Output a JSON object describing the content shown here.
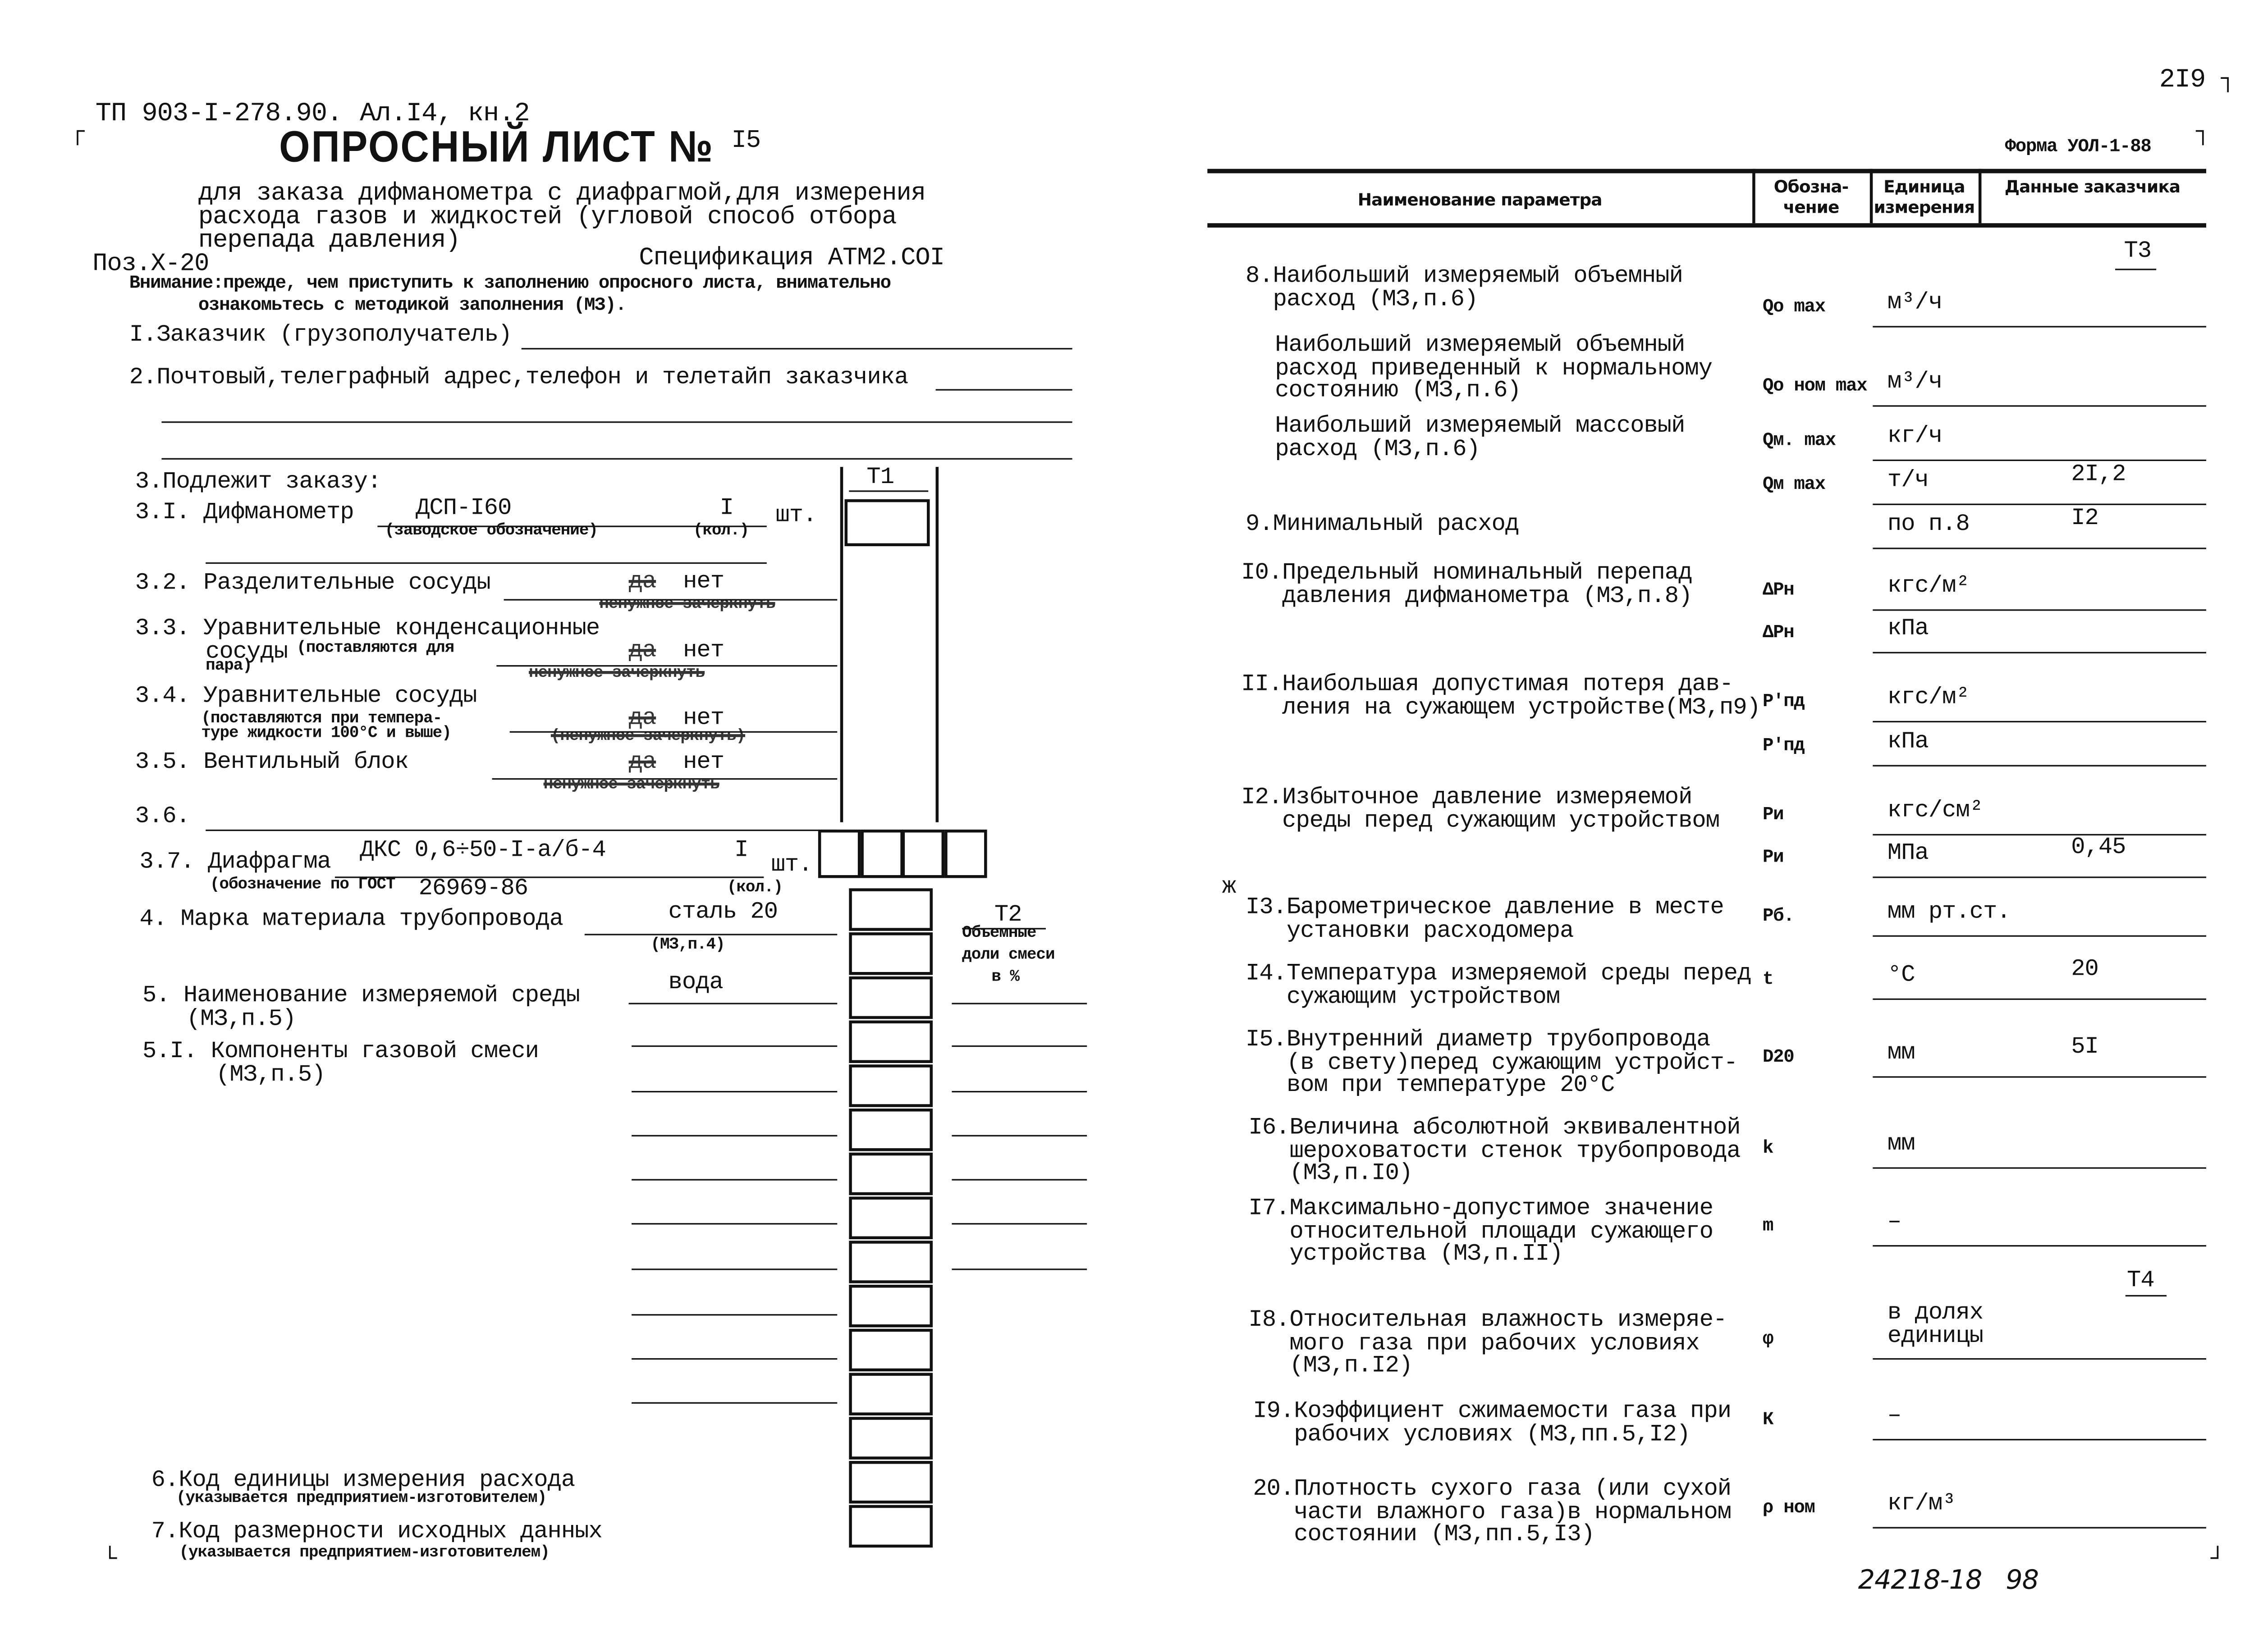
{
  "header": {
    "doc_code": "ТП 903-I-278.90.",
    "album": "Ал.I4, кн.2",
    "page_number": "2I9",
    "form": "Форма УОЛ-1-88",
    "handwritten_note": "24218-18   98"
  },
  "title": {
    "main": "ОПРОСНЫЙ ЛИСТ №",
    "number": "I5",
    "subtitle": [
      "для заказа дифманометра с диафрагмой,для измерения",
      "расхода газов и жидкостей (угловой способ отбора",
      "перепада давления)"
    ],
    "position": "Поз.Х-20",
    "specification": "Спецификация АТМ2.СОI",
    "warning": [
      "Внимание:прежде, чем приступить к заполнению опросного листа, внимательно",
      "ознакомьтесь с методикой заполнения (МЗ)."
    ]
  },
  "left": {
    "customer": "I.Заказчик (грузополучатель)",
    "address": "2.Почтовый,телеграфный адрес,телефон и телетайп заказчика",
    "order": "3.Подлежит заказу:",
    "t1": "Т1",
    "i31": {
      "label": "3.I. Дифманометр",
      "value": "ДСП-I60",
      "qty": "I",
      "unit": "шт.",
      "hint": "(заводское обозначение)",
      "qty_hint": "(кол.)"
    },
    "i32": {
      "label": "3.2. Разделительные сосуды",
      "crossed": "да",
      "value": "нет",
      "note": "ненужное зачеркнуть"
    },
    "i33": {
      "label": "3.3. Уравнительные конденсационные",
      "label2": "сосуды",
      "hint": "(поставляются для",
      "hint2": "пара)",
      "crossed": "да",
      "value": "нет",
      "note": "ненужное зачеркнуть"
    },
    "i34": {
      "label": "3.4. Уравнительные сосуды",
      "hint": "(поставляются при темпера-",
      "hint2": "туре жидкости 100°С и выше)",
      "crossed": "да",
      "value": "нет",
      "note": "(ненужное зачеркнуть)"
    },
    "i35": {
      "label": "3.5. Вентильный блок",
      "crossed": "да",
      "value": "нет",
      "note": "ненужное зачеркнуть"
    },
    "i36": {
      "label": "3.6."
    },
    "i37": {
      "label": "3.7. Диафрагма",
      "value": "ДКС 0,6÷50-I-а/б-4",
      "qty": "I",
      "unit": "шт.",
      "hint": "(обозначение по ГОСТ",
      "gost": "26969-86",
      "qty_hint": "(кол.)"
    },
    "i4": {
      "label": "4. Марка материала трубопровода",
      "value": "сталь 20",
      "ref": "(МЗ,п.4)"
    },
    "i5": {
      "label": "5. Наименование измеряемой среды",
      "label2": "(МЗ,п.5)",
      "value": "вода"
    },
    "i51": {
      "label": "5.I. Компоненты газовой смеси",
      "label2": "(МЗ,п.5)"
    },
    "t2": {
      "label": "Т2",
      "lines": [
        "Объемные",
        "доли смеси",
        "в %"
      ]
    },
    "i6": {
      "label": "6.Код единицы измерения расхода",
      "hint": "(указывается предприятием-изготовителем)"
    },
    "i7": {
      "label": "7.Код размерности исходных данных",
      "hint": "(указывается предприятием-изготовителем)"
    }
  },
  "table": {
    "columns": [
      "Наименование параметра",
      "Обозна-чение",
      "Единица измерения",
      "Данные заказчика"
    ],
    "t3": "Т3",
    "t4": "Т4",
    "mark": "ж",
    "rows": [
      {
        "lines": [
          "8.Наибольший измеряемый объемный",
          "  расход (МЗ,п.6)"
        ],
        "entries": [
          {
            "symbol": "Qо max",
            "unit": "м³/ч",
            "value": ""
          }
        ]
      },
      {
        "lines": [
          "Наибольший измеряемый объемный",
          "расход приведенный к нормальному",
          "состоянию (МЗ,п.6)"
        ],
        "entries": [
          {
            "symbol": "Qо ном max",
            "unit": "м³/ч",
            "value": ""
          }
        ]
      },
      {
        "lines": [
          "Наибольший измеряемый массовый",
          "расход (МЗ,п.6)"
        ],
        "entries": [
          {
            "symbol": "Qм. max",
            "unit": "кг/ч",
            "value": ""
          },
          {
            "symbol": "Qм max",
            "unit": "т/ч",
            "value": "2I,2"
          }
        ]
      },
      {
        "lines": [
          "9.Минимальный расход"
        ],
        "entries": [
          {
            "symbol": "",
            "unit": "по п.8",
            "value": "I2"
          }
        ]
      },
      {
        "lines": [
          "I0.Предельный номинальный перепад",
          "   давления дифманометра (МЗ,п.8)"
        ],
        "entries": [
          {
            "symbol": "ΔPн",
            "unit": "кгс/м²",
            "value": ""
          },
          {
            "symbol": "ΔPн",
            "unit": "кПа",
            "value": ""
          }
        ]
      },
      {
        "lines": [
          "II.Наибольшая допустимая потеря дав-",
          "   ления на сужающем устройстве(МЗ,п9)"
        ],
        "entries": [
          {
            "symbol": "P'пд",
            "unit": "кгс/м²",
            "value": ""
          },
          {
            "symbol": "P'пд",
            "unit": "кПа",
            "value": ""
          }
        ]
      },
      {
        "lines": [
          "I2.Избыточное давление измеряемой",
          "   среды перед сужающим устройством"
        ],
        "entries": [
          {
            "symbol": "Ри",
            "unit": "кгс/см²",
            "value": ""
          },
          {
            "symbol": "Ри",
            "unit": "МПа",
            "value": "0,45"
          }
        ]
      },
      {
        "lines": [
          "I3.Барометрическое давление в месте",
          "   установки расходомера"
        ],
        "entries": [
          {
            "symbol": "Рб.",
            "unit": "мм рт.ст.",
            "value": ""
          }
        ]
      },
      {
        "lines": [
          "I4.Температура измеряемой среды перед",
          "   сужающим устройством"
        ],
        "entries": [
          {
            "symbol": "t",
            "unit": "°С",
            "value": "20"
          }
        ]
      },
      {
        "lines": [
          "I5.Внутренний диаметр трубопровода",
          "   (в свету)перед сужающим устройст-",
          "   вом при температуре 20°С"
        ],
        "entries": [
          {
            "symbol": "D20",
            "unit": "мм",
            "value": "5I"
          }
        ]
      },
      {
        "lines": [
          "I6.Величина абсолютной эквивалентной",
          "   шероховатости стенок трубопровода",
          "   (МЗ,п.I0)"
        ],
        "entries": [
          {
            "symbol": "k",
            "unit": "мм",
            "value": ""
          }
        ]
      },
      {
        "lines": [
          "I7.Максимально-допустимое значение",
          "   относительной площади сужающего",
          "   устройства (МЗ,п.II)"
        ],
        "entries": [
          {
            "symbol": "m",
            "unit": "–",
            "value": ""
          }
        ]
      },
      {
        "lines": [
          "I8.Относительная влажность измеряе-",
          "   мого газа при рабочих условиях",
          "   (МЗ,п.I2)"
        ],
        "entries": [
          {
            "symbol": "φ",
            "unit": "в долях единицы",
            "value": ""
          }
        ]
      },
      {
        "lines": [
          "I9.Коэффициент сжимаемости газа при",
          "   рабочих условиях (МЗ,пп.5,I2)"
        ],
        "entries": [
          {
            "symbol": "К",
            "unit": "–",
            "value": ""
          }
        ]
      },
      {
        "lines": [
          "20.Плотность сухого газа (или сухой",
          "   части влажного газа)в нормальном",
          "   состоянии (МЗ,пп.5,I3)"
        ],
        "entries": [
          {
            "symbol": "ρ ном",
            "unit": "кг/м³",
            "value": ""
          }
        ]
      }
    ]
  }
}
